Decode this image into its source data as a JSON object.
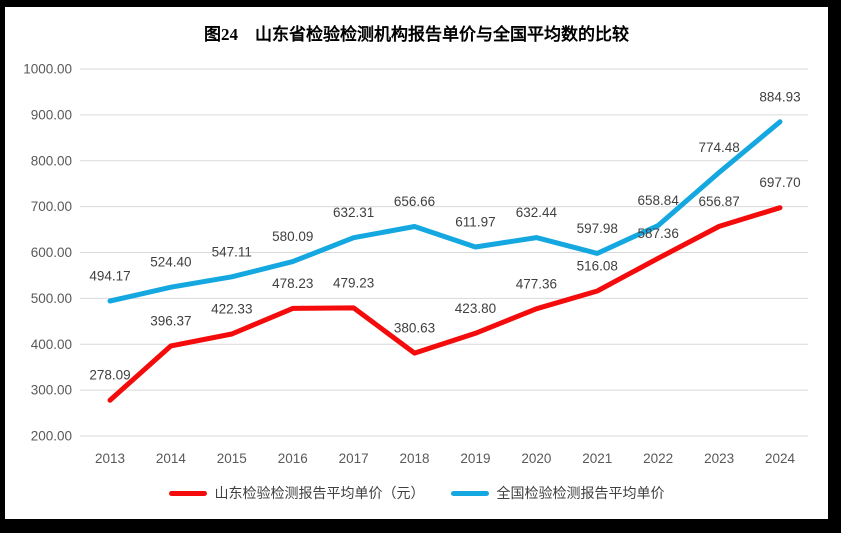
{
  "chart_data": {
    "type": "line",
    "title": "图24　山东省检验检测机构报告单价与全国平均数的比较",
    "x": [
      "2013",
      "2014",
      "2015",
      "2016",
      "2017",
      "2018",
      "2019",
      "2020",
      "2021",
      "2022",
      "2023",
      "2024"
    ],
    "series": [
      {
        "name": "山东检验检测报告平均单价（元）",
        "color": "#f40b0b",
        "values": [
          278.09,
          396.37,
          422.33,
          478.23,
          479.23,
          380.63,
          423.8,
          477.36,
          516.08,
          587.36,
          656.87,
          697.7
        ]
      },
      {
        "name": "全国检验检测报告平均单价",
        "color": "#14a7e0",
        "values": [
          494.17,
          524.4,
          547.11,
          580.09,
          632.31,
          656.66,
          611.97,
          632.44,
          597.98,
          658.84,
          774.48,
          884.93
        ]
      }
    ],
    "xlabel": "",
    "ylabel": "",
    "ylim": [
      200,
      1000
    ],
    "ytick_step": 100,
    "ytick_decimals": 2,
    "grid": true,
    "data_labels": true,
    "legend_position": "bottom",
    "gridline_color": "#d9d9d9",
    "axis_text_color": "#595959",
    "data_label_color": "#404040",
    "background_color": "#ffffff",
    "frame_color": "#000000"
  }
}
